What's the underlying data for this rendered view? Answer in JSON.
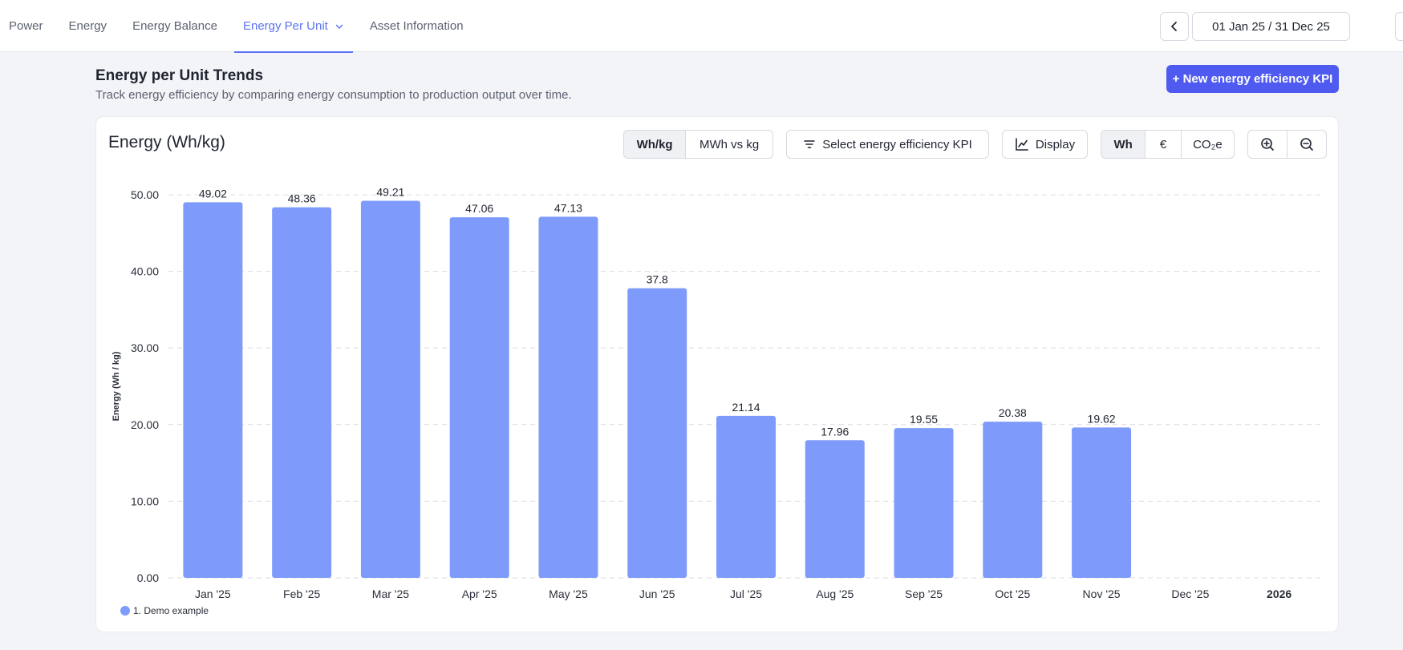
{
  "tabs": [
    {
      "label": "Power"
    },
    {
      "label": "Energy"
    },
    {
      "label": "Energy Balance"
    },
    {
      "label": "Energy Per Unit"
    },
    {
      "label": "Asset Information"
    }
  ],
  "date_range": {
    "label": "01 Jan 25 / 31 Dec 25"
  },
  "header": {
    "title": "Energy per Unit Trends",
    "subtitle": "Track energy efficiency by comparing energy consumption to production output over time.",
    "new_kpi_label": "+ New energy efficiency KPI"
  },
  "card": {
    "title": "Energy (Wh/kg)",
    "unit_options": [
      "Wh/kg",
      "MWh vs kg"
    ],
    "select_kpi_label": "Select energy efficiency KPI",
    "display_label": "Display",
    "currency_options": [
      "Wh",
      "€",
      "CO₂e"
    ]
  },
  "colors": {
    "accent": "#5b74f5",
    "bar": "#7e9bfc",
    "primary_button": "#4f5bf0"
  },
  "chart_data": {
    "type": "bar",
    "title": "Energy (Wh/kg)",
    "ylabel": "Energy (Wh / kg)",
    "xlabel": "",
    "ylim": [
      0,
      50
    ],
    "yticks": [
      "0.00",
      "10.00",
      "20.00",
      "30.00",
      "40.00",
      "50.00"
    ],
    "categories": [
      "Jan '25",
      "Feb '25",
      "Mar '25",
      "Apr '25",
      "May '25",
      "Jun '25",
      "Jul '25",
      "Aug '25",
      "Sep '25",
      "Oct '25",
      "Nov '25",
      "Dec '25",
      "2026"
    ],
    "series": [
      {
        "name": "1. Demo example",
        "values": [
          49.02,
          48.36,
          49.21,
          47.06,
          47.13,
          37.8,
          21.14,
          17.96,
          19.55,
          20.38,
          19.62,
          null,
          null
        ]
      }
    ],
    "data_labels": [
      "49.02",
      "48.36",
      "49.21",
      "47.06",
      "47.13",
      "37.8",
      "21.14",
      "17.96",
      "19.55",
      "20.38",
      "19.62"
    ],
    "legend": [
      "1. Demo example"
    ],
    "grid": true
  }
}
